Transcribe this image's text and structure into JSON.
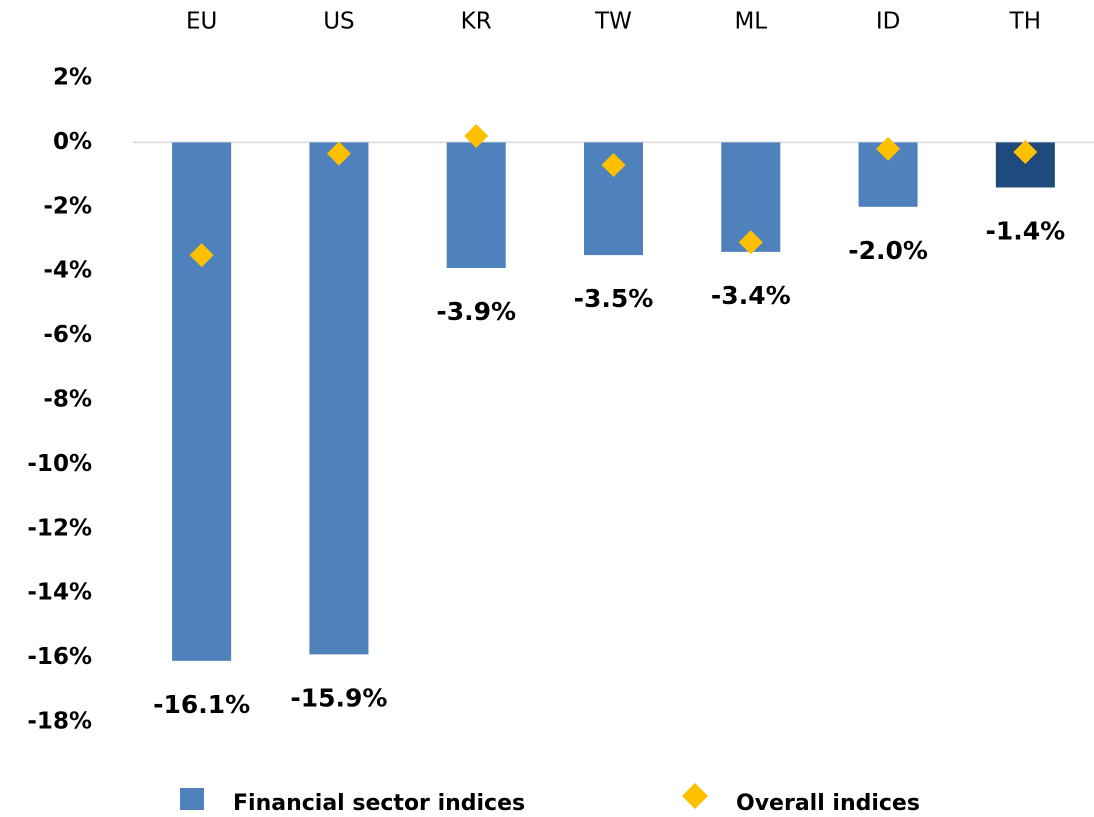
{
  "chart_data": {
    "type": "bar",
    "categories": [
      "EU",
      "US",
      "KR",
      "TW",
      "ML",
      "ID",
      "TH"
    ],
    "series": [
      {
        "name": "Financial sector indices",
        "type": "bar",
        "color": "#4f81bd",
        "colors": [
          "#4f81bd",
          "#4f81bd",
          "#4f81bd",
          "#4f81bd",
          "#4f81bd",
          "#4f81bd",
          "#1f4a7e"
        ],
        "values": [
          -16.1,
          -15.9,
          -3.9,
          -3.5,
          -3.4,
          -2.0,
          -1.4
        ],
        "value_labels": [
          "-16.1%",
          "-15.9%",
          "-3.9%",
          "-3.5%",
          "-3.4%",
          "-2.0%",
          "-1.4%"
        ]
      },
      {
        "name": "Overall indices",
        "type": "scatter",
        "marker": "diamond",
        "color": "#ffc000",
        "values": [
          -3.5,
          -0.35,
          0.2,
          -0.7,
          -3.1,
          -0.2,
          -0.3
        ]
      }
    ],
    "ylim": [
      -18,
      2
    ],
    "yticks": [
      {
        "value": 2,
        "label": "2%"
      },
      {
        "value": 0,
        "label": "0%"
      },
      {
        "value": -2,
        "label": "-2%"
      },
      {
        "value": -4,
        "label": "-4%"
      },
      {
        "value": -6,
        "label": "-6%"
      },
      {
        "value": -8,
        "label": "-8%"
      },
      {
        "value": -10,
        "label": "-10%"
      },
      {
        "value": -12,
        "label": "-12%"
      },
      {
        "value": -14,
        "label": "-14%"
      },
      {
        "value": -16,
        "label": "-16%"
      },
      {
        "value": -18,
        "label": "-18%"
      }
    ],
    "grid": false,
    "legend": "bottom"
  }
}
